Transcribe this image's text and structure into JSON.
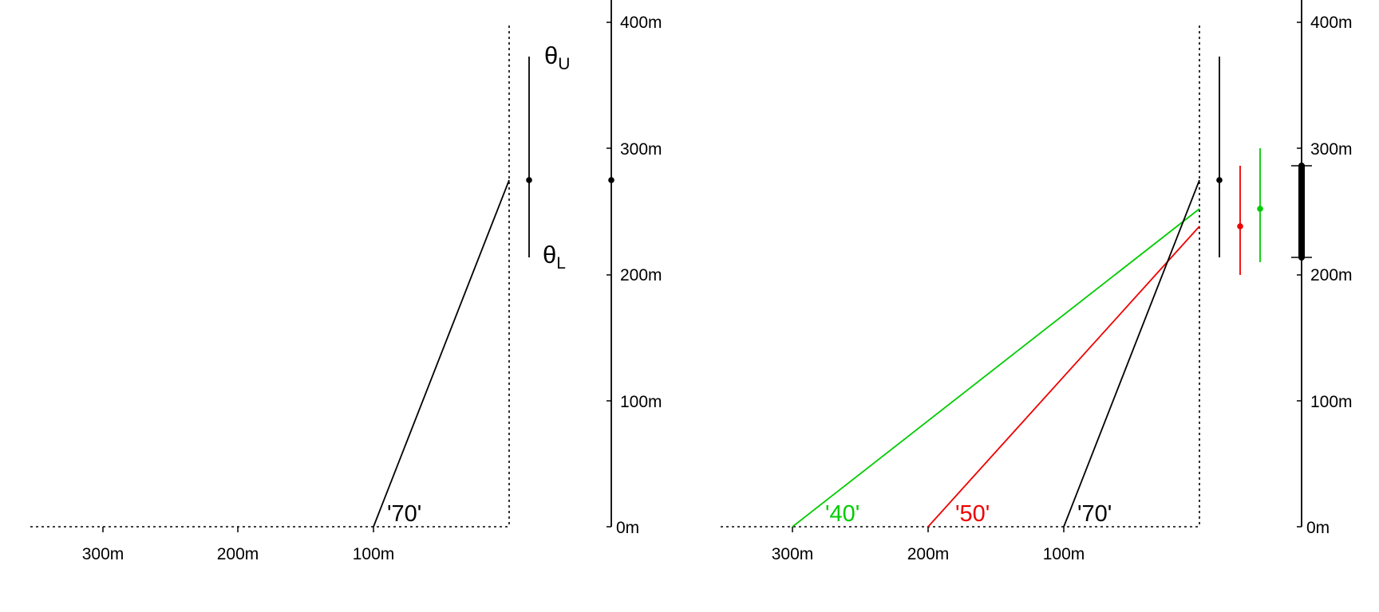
{
  "colors": {
    "black": "#000000",
    "red": "#ee0000",
    "green": "#00cc00"
  },
  "left_panel": {
    "x_ticks": [
      "300m",
      "200m",
      "100m"
    ],
    "y_ticks": [
      "400m",
      "300m",
      "200m",
      "100m",
      "0m"
    ],
    "lines": [
      {
        "label": "'70'",
        "start_distance_m": 100,
        "end_height_m": 275,
        "color": "black"
      }
    ],
    "theta_upper": {
      "symbol": "θ",
      "subscript": "U"
    },
    "theta_lower": {
      "symbol": "θ",
      "subscript": "L"
    },
    "range_bar": {
      "top_m": 375,
      "bottom_m": 215,
      "center_m": 275
    },
    "axis_point_m": 275
  },
  "right_panel": {
    "x_ticks": [
      "300m",
      "200m",
      "100m"
    ],
    "y_ticks": [
      "400m",
      "300m",
      "200m",
      "100m",
      "0m"
    ],
    "lines": [
      {
        "label": "'40'",
        "start_distance_m": 300,
        "end_height_m": 252,
        "color": "green"
      },
      {
        "label": "'50'",
        "start_distance_m": 200,
        "end_height_m": 238,
        "color": "red"
      },
      {
        "label": "'70'",
        "start_distance_m": 100,
        "end_height_m": 275,
        "color": "black"
      }
    ],
    "range_bars": [
      {
        "color": "black",
        "top_m": 375,
        "bottom_m": 215,
        "center_m": 275
      },
      {
        "color": "red",
        "top_m": 287,
        "bottom_m": 200,
        "center_m": 238
      },
      {
        "color": "green",
        "top_m": 301,
        "bottom_m": 210,
        "center_m": 252
      }
    ],
    "combined_range": {
      "top_m": 287,
      "bottom_m": 215
    }
  }
}
